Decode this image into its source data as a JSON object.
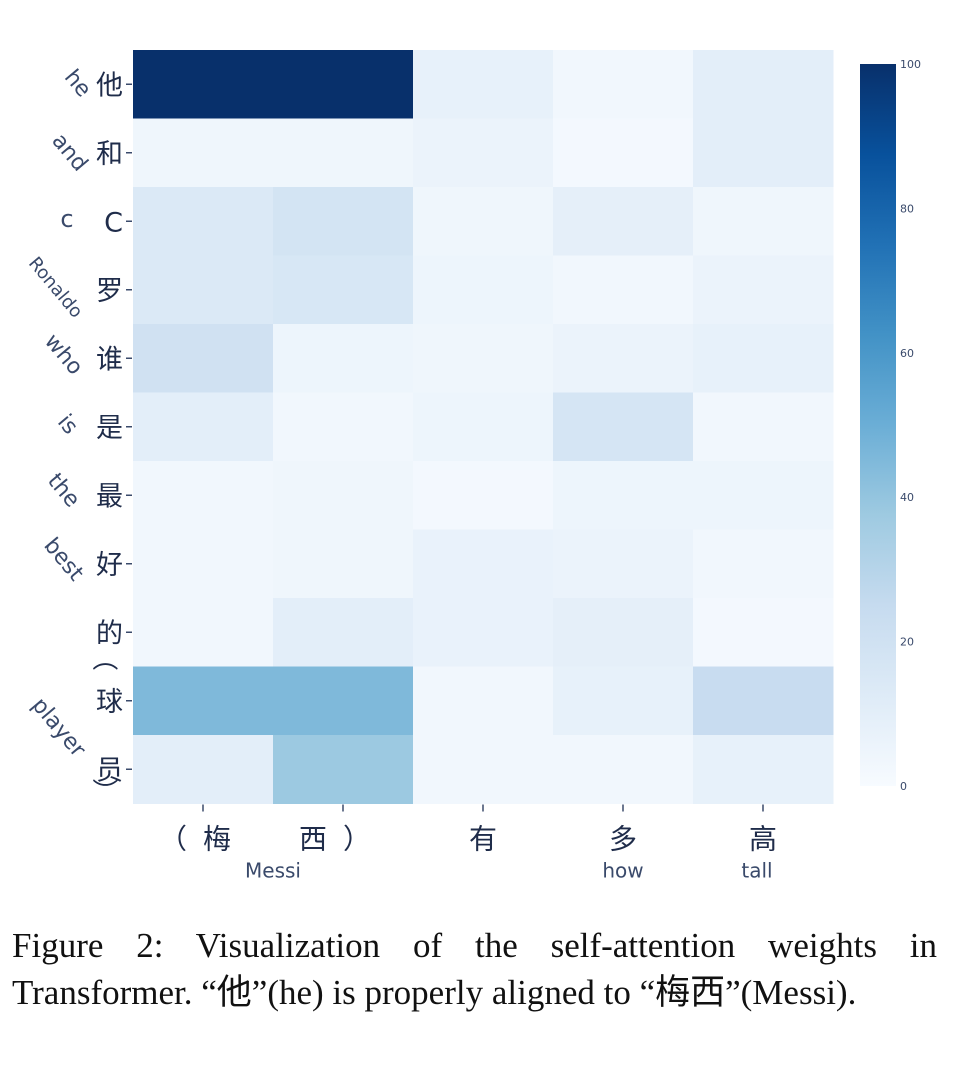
{
  "chart_data": {
    "type": "heatmap",
    "x_tokens": [
      "（梅",
      "西）",
      "有",
      "多",
      "高"
    ],
    "x_translations": [
      {
        "text": "Messi",
        "span": [
          0,
          1
        ]
      },
      {
        "text": "how",
        "span": [
          3,
          3
        ]
      },
      {
        "text": "tall",
        "span": [
          4,
          4
        ]
      }
    ],
    "y_tokens": [
      "他",
      "和",
      "C",
      "罗",
      "谁",
      "是",
      "最",
      "好",
      "的",
      "球",
      "员"
    ],
    "y_translations": [
      {
        "text": "he",
        "row": 0
      },
      {
        "text": "and",
        "row": 1
      },
      {
        "text": "c",
        "row": 2
      },
      {
        "text": "Ronaldo",
        "row": 3
      },
      {
        "text": "who",
        "row": 4
      },
      {
        "text": "is",
        "row": 5
      },
      {
        "text": "the",
        "row": 6
      },
      {
        "text": "best",
        "row": 7
      },
      {
        "text": "player",
        "row": 9
      }
    ],
    "y_bracket_open": "（",
    "y_bracket_close": "）",
    "values": [
      [
        100,
        100,
        8,
        3,
        10
      ],
      [
        4,
        4,
        6,
        2,
        10
      ],
      [
        14,
        18,
        4,
        9,
        4
      ],
      [
        14,
        16,
        5,
        3,
        6
      ],
      [
        20,
        5,
        4,
        6,
        8
      ],
      [
        10,
        3,
        5,
        17,
        3
      ],
      [
        3,
        4,
        2,
        5,
        5
      ],
      [
        3,
        4,
        7,
        6,
        3
      ],
      [
        3,
        10,
        7,
        9,
        2
      ],
      [
        45,
        45,
        3,
        8,
        24
      ],
      [
        10,
        38,
        3,
        3,
        8
      ]
    ],
    "colorbar": {
      "min": 0,
      "max": 100,
      "ticks": [
        0,
        20,
        40,
        60,
        80,
        100
      ]
    },
    "colorscale": "Blues"
  },
  "caption": "Figure 2:  Visualization of the self-attention weights in Transformer.  “他”(he) is properly aligned to “梅西”(Messi)."
}
